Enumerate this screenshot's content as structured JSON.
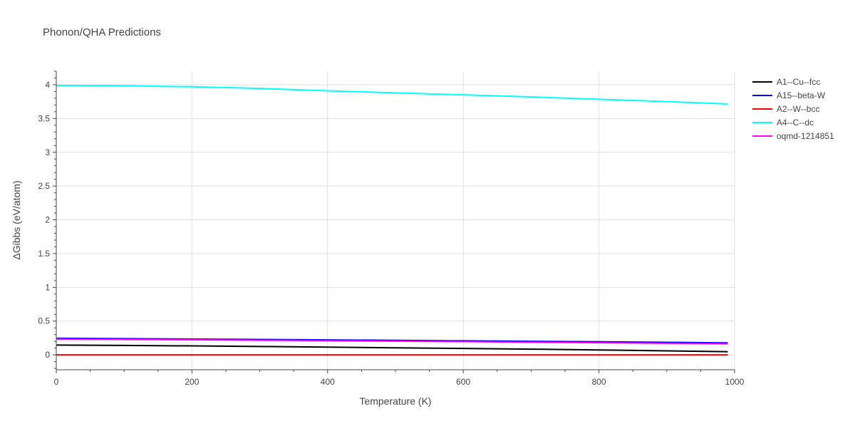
{
  "chart_data": {
    "type": "line",
    "title": "Phonon/QHA Predictions",
    "xlabel": "Temperature (K)",
    "ylabel": "ΔGibbs (eV/atom)",
    "xlim": [
      0,
      1000
    ],
    "ylim": [
      -0.22,
      4.2
    ],
    "x_ticks": [
      0,
      200,
      400,
      600,
      800,
      1000
    ],
    "y_ticks": [
      0,
      0.5,
      1,
      1.5,
      2,
      2.5,
      3,
      3.5,
      4
    ],
    "x_tick_labels": [
      "0",
      "200",
      "400",
      "600",
      "800",
      "1000"
    ],
    "y_tick_labels": [
      "0",
      "0.5",
      "1",
      "1.5",
      "2",
      "2.5",
      "3",
      "3.5",
      "4"
    ],
    "grid": true,
    "legend_position": "right",
    "series": [
      {
        "name": "A1--Cu--fcc",
        "color": "#000000",
        "x": [
          0,
          100,
          200,
          300,
          400,
          500,
          600,
          700,
          800,
          900,
          990
        ],
        "y": [
          0.145,
          0.14,
          0.133,
          0.124,
          0.115,
          0.105,
          0.095,
          0.085,
          0.073,
          0.06,
          0.047
        ]
      },
      {
        "name": "A15--beta-W",
        "color": "#0000ff",
        "x": [
          0,
          100,
          200,
          300,
          400,
          500,
          600,
          700,
          800,
          900,
          990
        ],
        "y": [
          0.245,
          0.24,
          0.234,
          0.228,
          0.222,
          0.215,
          0.208,
          0.201,
          0.194,
          0.186,
          0.178
        ]
      },
      {
        "name": "A2--W--bcc",
        "color": "#ff0000",
        "x": [
          0,
          100,
          200,
          300,
          400,
          500,
          600,
          700,
          800,
          900,
          990
        ],
        "y": [
          0,
          0,
          0,
          0,
          0,
          0,
          0,
          0,
          0,
          0,
          0
        ]
      },
      {
        "name": "A4--C--dc",
        "color": "#00ffff",
        "x": [
          0,
          100,
          200,
          300,
          400,
          500,
          600,
          700,
          800,
          900,
          990
        ],
        "y": [
          3.99,
          3.985,
          3.97,
          3.945,
          3.91,
          3.88,
          3.85,
          3.82,
          3.785,
          3.75,
          3.715
        ]
      },
      {
        "name": "oqmd-1214851",
        "color": "#ff00ff",
        "x": [
          0,
          100,
          200,
          300,
          400,
          500,
          600,
          700,
          800,
          900,
          990
        ],
        "y": [
          0.235,
          0.23,
          0.224,
          0.217,
          0.21,
          0.203,
          0.196,
          0.188,
          0.18,
          0.172,
          0.164
        ]
      }
    ]
  }
}
